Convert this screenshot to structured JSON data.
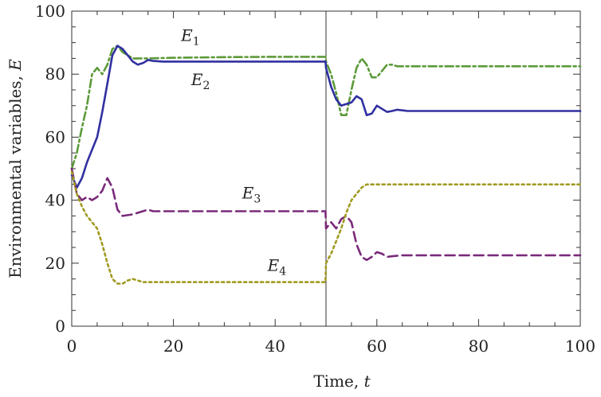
{
  "chart_data": {
    "type": "line",
    "xlabel": "Time,",
    "xlabel_var": "t",
    "ylabel": "Environmental variables,",
    "ylabel_var": "E",
    "xlim": [
      0,
      100
    ],
    "ylim": [
      0,
      100
    ],
    "x_ticks": [
      0,
      20,
      40,
      60,
      80,
      100
    ],
    "y_ticks": [
      0,
      20,
      40,
      60,
      80,
      100
    ],
    "vertical_line_x": 50,
    "grid": false,
    "series": [
      {
        "name": "E1",
        "label_main": "E",
        "label_sub": "1",
        "color": "#5c9a3a",
        "dash": "dashdot",
        "points": [
          [
            0,
            50
          ],
          [
            1,
            55
          ],
          [
            2,
            63
          ],
          [
            3,
            70
          ],
          [
            4,
            80
          ],
          [
            5,
            82
          ],
          [
            6,
            80
          ],
          [
            7,
            83
          ],
          [
            8,
            88
          ],
          [
            9,
            89
          ],
          [
            10,
            87
          ],
          [
            12,
            85
          ],
          [
            15,
            85
          ],
          [
            20,
            85.2
          ],
          [
            30,
            85.4
          ],
          [
            40,
            85.5
          ],
          [
            49.9,
            85.5
          ],
          [
            50,
            84
          ],
          [
            51,
            80
          ],
          [
            52,
            74
          ],
          [
            53,
            67
          ],
          [
            54,
            67
          ],
          [
            55,
            75
          ],
          [
            56,
            82
          ],
          [
            57,
            85
          ],
          [
            58,
            83
          ],
          [
            59,
            79
          ],
          [
            60,
            79
          ],
          [
            61,
            81
          ],
          [
            62,
            83
          ],
          [
            63,
            83
          ],
          [
            64,
            82.5
          ],
          [
            66,
            82.5
          ],
          [
            70,
            82.5
          ],
          [
            80,
            82.5
          ],
          [
            100,
            82.5
          ]
        ]
      },
      {
        "name": "E2",
        "label_main": "E",
        "label_sub": "2",
        "color": "#3030a0",
        "dash": "solid",
        "points": [
          [
            0,
            48
          ],
          [
            1,
            44
          ],
          [
            2,
            47
          ],
          [
            3,
            52
          ],
          [
            4,
            56
          ],
          [
            5,
            60
          ],
          [
            6,
            68
          ],
          [
            7,
            77
          ],
          [
            8,
            86
          ],
          [
            9,
            89
          ],
          [
            10,
            88
          ],
          [
            11,
            86
          ],
          [
            12,
            84
          ],
          [
            13,
            83
          ],
          [
            14,
            83.5
          ],
          [
            15,
            84.5
          ],
          [
            16,
            84.2
          ],
          [
            18,
            84
          ],
          [
            20,
            84
          ],
          [
            30,
            84
          ],
          [
            40,
            84
          ],
          [
            49.9,
            84
          ],
          [
            50,
            82
          ],
          [
            51,
            76
          ],
          [
            52,
            72
          ],
          [
            53,
            70
          ],
          [
            54,
            70.5
          ],
          [
            55,
            71
          ],
          [
            56,
            73
          ],
          [
            57,
            72
          ],
          [
            58,
            67
          ],
          [
            59,
            67.5
          ],
          [
            60,
            70
          ],
          [
            61,
            69
          ],
          [
            62,
            68
          ],
          [
            63,
            68.3
          ],
          [
            64,
            68.7
          ],
          [
            66,
            68.3
          ],
          [
            70,
            68.3
          ],
          [
            80,
            68.3
          ],
          [
            100,
            68.3
          ]
        ]
      },
      {
        "name": "E3",
        "label_main": "E",
        "label_sub": "3",
        "color": "#7a2a7a",
        "dash": "dashed",
        "points": [
          [
            0,
            50
          ],
          [
            1,
            42
          ],
          [
            2,
            40
          ],
          [
            3,
            41
          ],
          [
            4,
            40
          ],
          [
            5,
            41
          ],
          [
            6,
            43
          ],
          [
            7,
            47
          ],
          [
            8,
            44
          ],
          [
            9,
            37
          ],
          [
            10,
            35
          ],
          [
            12,
            35.5
          ],
          [
            14,
            36.5
          ],
          [
            15,
            37
          ],
          [
            16,
            36.5
          ],
          [
            20,
            36.5
          ],
          [
            30,
            36.5
          ],
          [
            40,
            36.5
          ],
          [
            49.9,
            36.5
          ],
          [
            50,
            31
          ],
          [
            51,
            33
          ],
          [
            52,
            31
          ],
          [
            53,
            34
          ],
          [
            54,
            35
          ],
          [
            55,
            33
          ],
          [
            56,
            26
          ],
          [
            57,
            22
          ],
          [
            58,
            21
          ],
          [
            59,
            22
          ],
          [
            60,
            23.5
          ],
          [
            61,
            23
          ],
          [
            62,
            22
          ],
          [
            63,
            22.2
          ],
          [
            65,
            22.5
          ],
          [
            70,
            22.5
          ],
          [
            80,
            22.5
          ],
          [
            100,
            22.5
          ]
        ]
      },
      {
        "name": "E4",
        "label_main": "E",
        "label_sub": "4",
        "color": "#a09a20",
        "dash": "dotted",
        "points": [
          [
            0,
            49
          ],
          [
            1,
            42
          ],
          [
            2,
            38
          ],
          [
            3,
            35
          ],
          [
            4,
            33
          ],
          [
            5,
            31
          ],
          [
            6,
            26
          ],
          [
            7,
            20
          ],
          [
            8,
            15
          ],
          [
            9,
            13.5
          ],
          [
            10,
            13.5
          ],
          [
            11,
            14.5
          ],
          [
            12,
            15
          ],
          [
            13,
            14.5
          ],
          [
            14,
            14
          ],
          [
            15,
            14
          ],
          [
            20,
            14
          ],
          [
            30,
            14
          ],
          [
            40,
            14
          ],
          [
            49.9,
            14
          ],
          [
            50,
            20
          ],
          [
            51,
            23
          ],
          [
            52,
            27
          ],
          [
            53,
            31
          ],
          [
            54,
            36
          ],
          [
            55,
            40
          ],
          [
            56,
            42
          ],
          [
            57,
            44
          ],
          [
            58,
            45
          ],
          [
            60,
            45
          ],
          [
            70,
            45
          ],
          [
            80,
            45
          ],
          [
            100,
            45
          ]
        ]
      }
    ],
    "annotations": [
      {
        "series": "E1",
        "x": 21.5,
        "y": 90.5
      },
      {
        "series": "E2",
        "x": 23.5,
        "y": 76.5
      },
      {
        "series": "E3",
        "x": 33.5,
        "y": 40.5
      },
      {
        "series": "E4",
        "x": 38.5,
        "y": 17.5
      }
    ]
  }
}
